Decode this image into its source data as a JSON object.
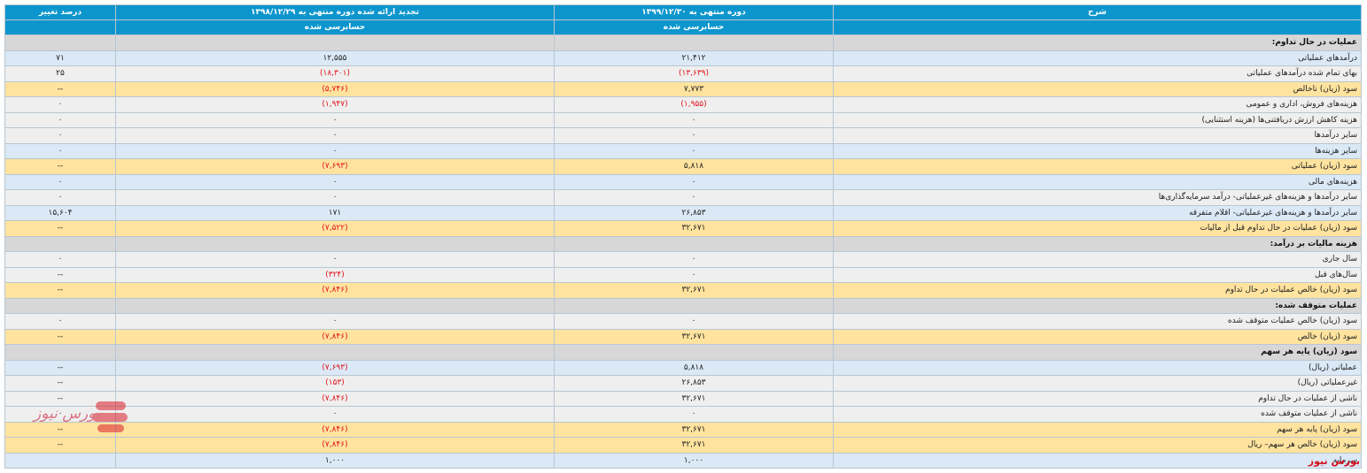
{
  "table": {
    "headers": {
      "description": "شرح",
      "current_period": "دوره منتهی به ۱۳۹۹/۱۲/۳۰",
      "prior_period": "تجدید ارائه شده دوره منتهی به ۱۳۹۸/۱۲/۲۹",
      "change_pct": "درصد تغییر"
    },
    "audit_status": {
      "current": "حسابرسی شده",
      "prior": "حسابرسی شده"
    },
    "rows": [
      {
        "type": "section",
        "desc": "عملیات در حال تداوم:",
        "current": "",
        "prior": "",
        "change": ""
      },
      {
        "type": "blue",
        "desc": "درآمدهای عملیاتی",
        "current": "۲۱,۴۱۲",
        "prior": "۱۲,۵۵۵",
        "change": "۷۱",
        "current_neg": false,
        "prior_neg": false
      },
      {
        "type": "white",
        "desc": "بهای تمام شده درآمدهای عملیاتی",
        "current": "(۱۳,۶۳۹)",
        "prior": "(۱۸,۳۰۱)",
        "change": "۲۵",
        "current_neg": true,
        "prior_neg": true
      },
      {
        "type": "yellow",
        "desc": "سود (زیان) ناخالص",
        "current": "۷,۷۷۳",
        "prior": "(۵,۷۴۶)",
        "change": "--",
        "current_neg": false,
        "prior_neg": true
      },
      {
        "type": "white",
        "desc": "هزینه‌های فروش، اداری و عمومی",
        "current": "(۱,۹۵۵)",
        "prior": "(۱,۹۴۷)",
        "change": "۰",
        "current_neg": true,
        "prior_neg": true
      },
      {
        "type": "white",
        "desc": "هزینه کاهش ارزش دریافتنی‌ها (هزینه استثنایی)",
        "current": "۰",
        "prior": "۰",
        "change": "۰",
        "current_neg": false,
        "prior_neg": false
      },
      {
        "type": "white",
        "desc": "سایر درآمدها",
        "current": "۰",
        "prior": "۰",
        "change": "۰",
        "current_neg": false,
        "prior_neg": false
      },
      {
        "type": "blue",
        "desc": "سایر هزینه‌ها",
        "current": "۰",
        "prior": "۰",
        "change": "۰",
        "current_neg": false,
        "prior_neg": false
      },
      {
        "type": "yellow",
        "desc": "سود (زیان) عملیاتی",
        "current": "۵,۸۱۸",
        "prior": "(۷,۶۹۳)",
        "change": "--",
        "current_neg": false,
        "prior_neg": true
      },
      {
        "type": "blue",
        "desc": "هزینه‌های مالی",
        "current": "۰",
        "prior": "۰",
        "change": "۰",
        "current_neg": false,
        "prior_neg": false
      },
      {
        "type": "white",
        "desc": "سایر درآمدها و هزینه‌های غیرعملیاتی- درآمد سرمایه‌گذاری‌ها",
        "current": "۰",
        "prior": "۰",
        "change": "۰",
        "current_neg": false,
        "prior_neg": false
      },
      {
        "type": "blue",
        "desc": "سایر درآمدها و هزینه‌های غیرعملیاتی- اقلام متفرقه",
        "current": "۲۶,۸۵۳",
        "prior": "۱۷۱",
        "change": "۱۵,۶۰۴",
        "current_neg": false,
        "prior_neg": false
      },
      {
        "type": "yellow",
        "desc": "سود (زیان) عملیات در حال تداوم قبل از مالیات",
        "current": "۳۲,۶۷۱",
        "prior": "(۷,۵۲۲)",
        "change": "--",
        "current_neg": false,
        "prior_neg": true
      },
      {
        "type": "section",
        "desc": "هزینه مالیات بر درآمد:",
        "current": "",
        "prior": "",
        "change": ""
      },
      {
        "type": "white",
        "desc": "سال جاری",
        "current": "۰",
        "prior": "۰",
        "change": "۰",
        "current_neg": false,
        "prior_neg": false
      },
      {
        "type": "white",
        "desc": "سال‌های قبل",
        "current": "۰",
        "prior": "(۳۲۴)",
        "change": "--",
        "current_neg": false,
        "prior_neg": true
      },
      {
        "type": "yellow",
        "desc": "سود (زیان) خالص عملیات در حال تداوم",
        "current": "۳۲,۶۷۱",
        "prior": "(۷,۸۴۶)",
        "change": "--",
        "current_neg": false,
        "prior_neg": true
      },
      {
        "type": "section",
        "desc": "عملیات متوقف شده:",
        "current": "",
        "prior": "",
        "change": ""
      },
      {
        "type": "white",
        "desc": "سود (زیان) خالص عملیات متوقف شده",
        "current": "۰",
        "prior": "۰",
        "change": "۰",
        "current_neg": false,
        "prior_neg": false
      },
      {
        "type": "yellow",
        "desc": "سود (زیان) خالص",
        "current": "۳۲,۶۷۱",
        "prior": "(۷,۸۴۶)",
        "change": "--",
        "current_neg": false,
        "prior_neg": true
      },
      {
        "type": "section",
        "desc": "سود (زیان) پایه هر سهم",
        "current": "",
        "prior": "",
        "change": ""
      },
      {
        "type": "blue",
        "desc": "عملیاتی (ریال)",
        "current": "۵,۸۱۸",
        "prior": "(۷,۶۹۳)",
        "change": "--",
        "current_neg": false,
        "prior_neg": true
      },
      {
        "type": "white",
        "desc": "غیرعملیاتی (ریال)",
        "current": "۲۶,۸۵۳",
        "prior": "(۱۵۳)",
        "change": "--",
        "current_neg": false,
        "prior_neg": true
      },
      {
        "type": "white",
        "desc": "ناشی از عملیات در حال تداوم",
        "current": "۳۲,۶۷۱",
        "prior": "(۷,۸۴۶)",
        "change": "--",
        "current_neg": false,
        "prior_neg": true
      },
      {
        "type": "white",
        "desc": "ناشی از عملیات متوقف شده",
        "current": "۰",
        "prior": "۰",
        "change": "۰",
        "current_neg": false,
        "prior_neg": false
      },
      {
        "type": "yellow",
        "desc": "سود (زیان) پایه هر سهم",
        "current": "۳۲,۶۷۱",
        "prior": "(۷,۸۴۶)",
        "change": "--",
        "current_neg": false,
        "prior_neg": true
      },
      {
        "type": "yellow",
        "desc": "سود (زیان) خالص هر سهم– ریال",
        "current": "۳۲,۶۷۱",
        "prior": "(۷,۸۴۶)",
        "change": "--",
        "current_neg": false,
        "prior_neg": true
      },
      {
        "type": "blue",
        "desc": "سرمایه",
        "current": "۱,۰۰۰",
        "prior": "۱,۰۰۰",
        "change": "",
        "current_neg": false,
        "prior_neg": false
      }
    ]
  },
  "branding": {
    "watermark_text": "بورس نیوز",
    "bottom_logo_text": "بورس نیوز",
    "accent_color": "#d10f1b",
    "header_color": "#0d96cd"
  }
}
